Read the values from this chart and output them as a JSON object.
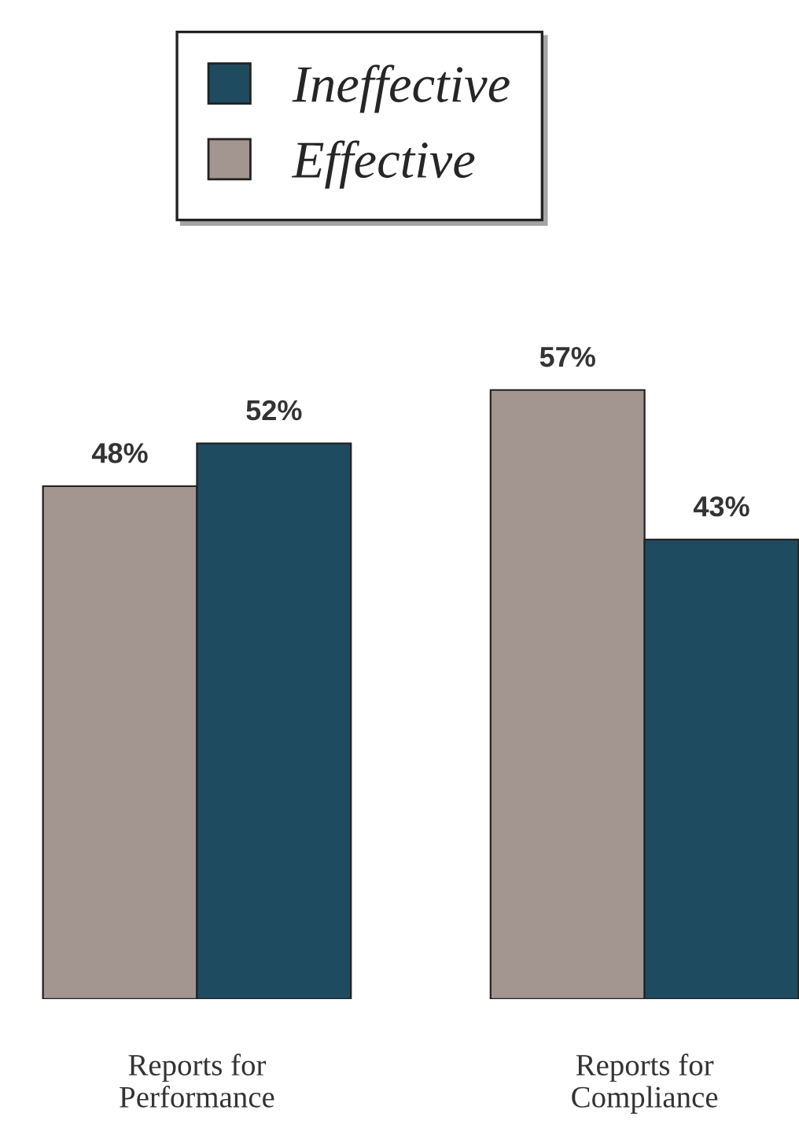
{
  "chart_data": {
    "type": "bar",
    "categories": [
      "Reports for\nPerformance",
      "Reports for\nCompliance"
    ],
    "series": [
      {
        "name": "Effective",
        "color": "#a39590",
        "values": [
          48,
          57
        ],
        "value_labels": [
          "48%",
          "57%"
        ]
      },
      {
        "name": "Ineffective",
        "color": "#1f4b60",
        "values": [
          52,
          43
        ],
        "value_labels": [
          "52%",
          "43%"
        ]
      }
    ],
    "legend": "top",
    "grid": false
  }
}
